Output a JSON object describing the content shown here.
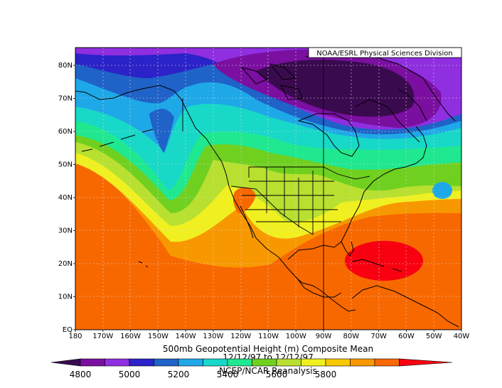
{
  "credit": "NOAA/ESRL Physical Sciences Division",
  "title_line1": "500mb Geopotential Height (m) Composite Mean",
  "title_line2": "12/12/97 to 12/12/97",
  "title_line3": "NCEP/NCAR Reanalysis",
  "lat_labels": [
    "EQ",
    "10N",
    "20N",
    "30N",
    "40N",
    "50N",
    "60N",
    "70N",
    "80N"
  ],
  "lon_labels": [
    "180",
    "170W",
    "160W",
    "150W",
    "140W",
    "130W",
    "120W",
    "110W",
    "100W",
    "90W",
    "80W",
    "70W",
    "60W",
    "50W",
    "40W"
  ],
  "colorbar": {
    "labels": [
      "4800",
      "5000",
      "5200",
      "5400",
      "5600",
      "5800"
    ],
    "colors": [
      "#3a0a4f",
      "#7a0fa0",
      "#8f2fe0",
      "#2b22c8",
      "#1f62c8",
      "#1fa8e8",
      "#18d8c8",
      "#20e890",
      "#70d020",
      "#b8e030",
      "#f0f020",
      "#f8c800",
      "#f89800",
      "#f86800",
      "#f80010"
    ]
  }
}
